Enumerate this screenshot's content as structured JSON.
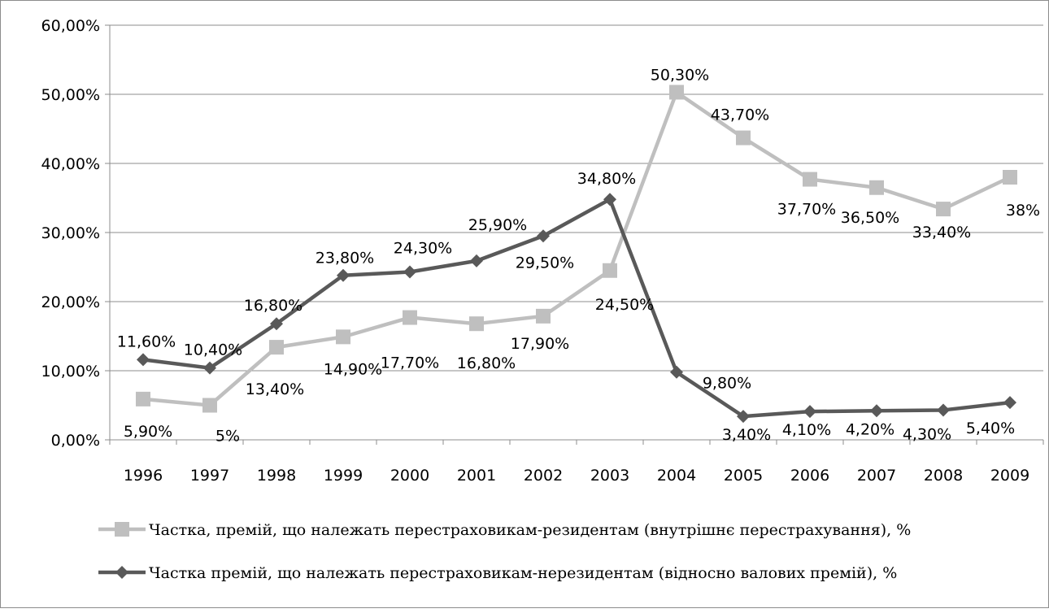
{
  "chart_data": {
    "type": "line",
    "categories": [
      "1996",
      "1997",
      "1998",
      "1999",
      "2000",
      "2001",
      "2002",
      "2003",
      "2004",
      "2005",
      "2006",
      "2007",
      "2008",
      "2009"
    ],
    "y_ticks": [
      "0,00%",
      "10,00%",
      "20,00%",
      "30,00%",
      "40,00%",
      "50,00%",
      "60,00%"
    ],
    "ylim": [
      0,
      60
    ],
    "grid": true,
    "legend_position": "bottom",
    "series": [
      {
        "name": "Частка,  премій, що належать перестраховикам-резидентам (внутрішнє перестрахування), %",
        "color": "#bfbfbf",
        "marker": "square",
        "values": [
          5.9,
          5.0,
          13.4,
          14.9,
          17.7,
          16.8,
          17.9,
          24.5,
          50.3,
          43.7,
          37.7,
          36.5,
          33.4,
          38.0
        ],
        "labels": [
          "5,90%",
          "5%",
          "13,40%",
          "14,90%",
          "17,70%",
          "16,80%",
          "17,90%",
          "24,50%",
          "50,30%",
          "43,70%",
          "37,70%",
          "36,50%",
          "33,40%",
          "38%"
        ]
      },
      {
        "name": "Частка премій, що належать перестраховикам-нерезидентам (відносно валових премій), %",
        "color": "#595959",
        "marker": "diamond",
        "values": [
          11.6,
          10.4,
          16.8,
          23.8,
          24.3,
          25.9,
          29.5,
          34.8,
          9.8,
          3.4,
          4.1,
          4.2,
          4.3,
          5.4
        ],
        "labels": [
          "11,60%",
          "10,40%",
          "16,80%",
          "23,80%",
          "24,30%",
          "25,90%",
          "29,50%",
          "34,80%",
          "9,80%",
          "3,40%",
          "4,10%",
          "4,20%",
          "4,30%",
          "5,40%"
        ]
      }
    ]
  }
}
